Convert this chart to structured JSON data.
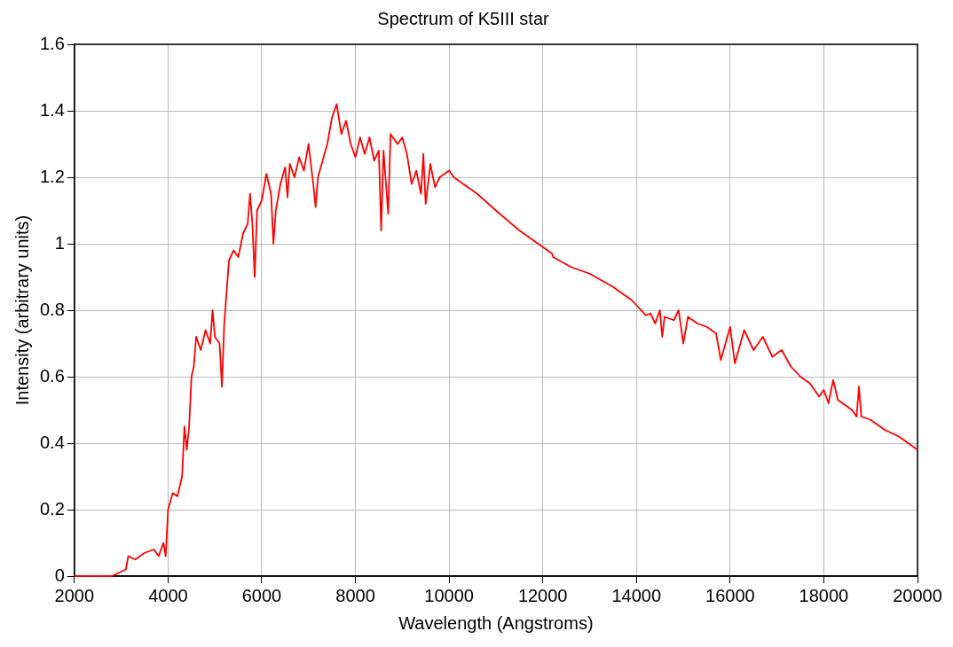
{
  "chart_data": {
    "type": "line",
    "title": "Spectrum of K5III star",
    "xlabel": "Wavelength (Angstroms)",
    "ylabel": "Intensity (arbitrary units)",
    "xlim": [
      2000,
      20000
    ],
    "xticks": [
      2000,
      4000,
      6000,
      8000,
      10000,
      12000,
      14000,
      16000,
      18000,
      20000
    ],
    "ylim": [
      0,
      1.6
    ],
    "yticks": [
      0,
      {
        "value": 0.2,
        "label": "0.2"
      },
      {
        "value": 0.4,
        "label": "0.4"
      },
      {
        "value": 0.6,
        "label": "0.6"
      },
      {
        "value": 0.8,
        "label": "0.8"
      },
      1,
      {
        "value": 1.2,
        "label": "1.2"
      },
      {
        "value": 1.4,
        "label": "1.4"
      },
      {
        "value": 1.6,
        "label": "1.6"
      }
    ],
    "grid": true,
    "legend": false,
    "marker": "none",
    "line_style": "solid",
    "series": [
      {
        "color": "#ff0000",
        "x": [
          2000,
          2800,
          3100,
          3150,
          3300,
          3500,
          3700,
          3800,
          3900,
          3950,
          4000,
          4100,
          4200,
          4300,
          4350,
          4400,
          4450,
          4500,
          4550,
          4600,
          4700,
          4800,
          4900,
          4950,
          5000,
          5100,
          5150,
          5200,
          5300,
          5400,
          5500,
          5600,
          5700,
          5750,
          5800,
          5850,
          5900,
          6000,
          6100,
          6200,
          6250,
          6300,
          6400,
          6500,
          6550,
          6600,
          6700,
          6800,
          6900,
          7000,
          7100,
          7150,
          7200,
          7300,
          7400,
          7500,
          7600,
          7700,
          7800,
          7900,
          8000,
          8100,
          8200,
          8300,
          8400,
          8500,
          8550,
          8600,
          8700,
          8750,
          8900,
          9000,
          9100,
          9200,
          9300,
          9400,
          9450,
          9500,
          9600,
          9700,
          9800,
          9900,
          10000,
          10100,
          10300,
          10600,
          11000,
          11500,
          12000,
          12200,
          12220,
          12600,
          13000,
          13500,
          13600,
          13900,
          14200,
          14300,
          14400,
          14500,
          14550,
          14600,
          14800,
          14900,
          15000,
          15100,
          15300,
          15500,
          15700,
          15800,
          16000,
          16100,
          16300,
          16500,
          16700,
          16900,
          17100,
          17300,
          17500,
          17700,
          17900,
          18000,
          18100,
          18200,
          18300,
          18600,
          18700,
          18750,
          18800,
          19000,
          19300,
          19600,
          19800,
          20000
        ],
        "values": [
          0,
          0,
          0.02,
          0.06,
          0.05,
          0.07,
          0.08,
          0.06,
          0.1,
          0.06,
          0.2,
          0.25,
          0.24,
          0.3,
          0.45,
          0.38,
          0.45,
          0.6,
          0.63,
          0.72,
          0.68,
          0.74,
          0.7,
          0.8,
          0.72,
          0.7,
          0.57,
          0.76,
          0.95,
          0.98,
          0.96,
          1.03,
          1.06,
          1.15,
          1.06,
          0.9,
          1.1,
          1.13,
          1.21,
          1.15,
          1.0,
          1.1,
          1.18,
          1.23,
          1.14,
          1.24,
          1.2,
          1.26,
          1.22,
          1.3,
          1.18,
          1.11,
          1.2,
          1.25,
          1.3,
          1.38,
          1.42,
          1.33,
          1.37,
          1.3,
          1.26,
          1.32,
          1.27,
          1.32,
          1.25,
          1.28,
          1.04,
          1.28,
          1.09,
          1.33,
          1.3,
          1.32,
          1.27,
          1.18,
          1.22,
          1.15,
          1.27,
          1.12,
          1.24,
          1.17,
          1.2,
          1.21,
          1.22,
          1.2,
          1.18,
          1.15,
          1.1,
          1.04,
          0.99,
          0.97,
          0.96,
          0.93,
          0.91,
          0.87,
          0.86,
          0.83,
          0.785,
          0.79,
          0.76,
          0.8,
          0.72,
          0.78,
          0.77,
          0.8,
          0.7,
          0.78,
          0.76,
          0.75,
          0.73,
          0.65,
          0.75,
          0.64,
          0.74,
          0.68,
          0.72,
          0.66,
          0.68,
          0.63,
          0.6,
          0.58,
          0.54,
          0.56,
          0.52,
          0.59,
          0.53,
          0.5,
          0.48,
          0.57,
          0.48,
          0.47,
          0.44,
          0.42,
          0.4,
          0.38
        ]
      }
    ]
  }
}
